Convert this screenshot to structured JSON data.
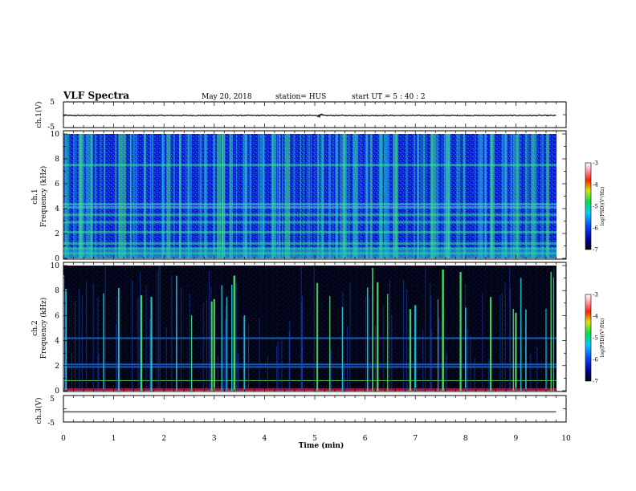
{
  "header": {
    "title": "VLF Spectra",
    "date": "May 20, 2018",
    "station": "station= HUS",
    "start": "start  UT  =   5  : 40 : 2"
  },
  "chart_data": [
    {
      "type": "line",
      "panel": "ch1-waveform",
      "ylabel": "ch.1(V)",
      "xlim": [
        0,
        10
      ],
      "ylim": [
        -5,
        5
      ],
      "ytick_labels": [
        "5",
        "-5"
      ],
      "series": [
        {
          "values_summary": "noisy trace around ~-0.5 V, amplitude about ±0.3 V, small spikes near t=5.1 min"
        }
      ]
    },
    {
      "type": "heatmap",
      "panel": "ch1-spectrogram",
      "ylabel_top": "ch.1",
      "ylabel": "Frequency (kHz)",
      "xlim": [
        0,
        9.8
      ],
      "ylim": [
        0,
        10
      ],
      "ytick_labels": [
        "0",
        "2",
        "4",
        "6",
        "8",
        "10"
      ],
      "colorbar": {
        "label": "log(PSD)(V²/Hz)",
        "range": [
          -7,
          -3
        ],
        "tick_labels": [
          "-3",
          "-4",
          "-5",
          "-6",
          "-7"
        ]
      },
      "bright_vertical_bands_min": [
        0.3,
        0.55,
        1.1,
        1.2,
        1.6,
        2.05,
        2.3,
        3.05,
        3.15,
        3.3,
        4.4,
        5.05,
        5.55,
        6.1,
        6.3,
        6.55,
        7.3,
        7.6,
        8.5,
        9.0,
        9.3,
        9.6
      ],
      "bright_horizontal_lines_khz": [
        0.4,
        0.8,
        1.2,
        2.1,
        2.9,
        3.5,
        4.1,
        4.35,
        7.5
      ]
    },
    {
      "type": "heatmap",
      "panel": "ch2-spectrogram",
      "ylabel_top": "ch.2",
      "ylabel": "Frequency (kHz)",
      "xlim": [
        0,
        9.8
      ],
      "ylim": [
        0,
        10
      ],
      "ytick_labels": [
        "0",
        "2",
        "4",
        "6",
        "8",
        "10"
      ],
      "colorbar": {
        "label": "log(PSD)(V²/Hz)",
        "range": [
          -7,
          -3
        ],
        "tick_labels": [
          "-3",
          "-4",
          "-5",
          "-6",
          "-7"
        ]
      },
      "sferic_lines_min": [
        0.0,
        0.05,
        0.8,
        1.1,
        1.55,
        1.75,
        2.25,
        2.55,
        2.95,
        3.0,
        3.15,
        3.25,
        3.35,
        3.4,
        3.6,
        5.05,
        5.3,
        5.55,
        6.05,
        6.15,
        6.25,
        6.45,
        6.9,
        7.0,
        7.45,
        7.55,
        7.9,
        8.0,
        8.5,
        8.95,
        9.0,
        9.1,
        9.2,
        9.6,
        9.7,
        9.75
      ],
      "bright_horizontal_lines_khz": [
        0.8,
        1.9,
        2.1,
        4.2
      ]
    },
    {
      "type": "line",
      "panel": "ch3-waveform",
      "ylabel": "ch.3(V)",
      "xlim": [
        0,
        10
      ],
      "ylim": [
        -5,
        5
      ],
      "ytick_labels": [
        "5",
        "-5"
      ],
      "series": [
        {
          "values_summary": "flat line at about -0.5 V"
        }
      ]
    }
  ],
  "x_axis": {
    "label": "Time (min)",
    "tick_labels": [
      "0",
      "1",
      "2",
      "3",
      "4",
      "5",
      "6",
      "7",
      "8",
      "9",
      "10"
    ]
  },
  "colors": {
    "spec_bg_ch1": "#0000c8",
    "spec_bg_ch2": "#000010",
    "cyan": "#19c8d2",
    "green": "#5ae67a"
  }
}
